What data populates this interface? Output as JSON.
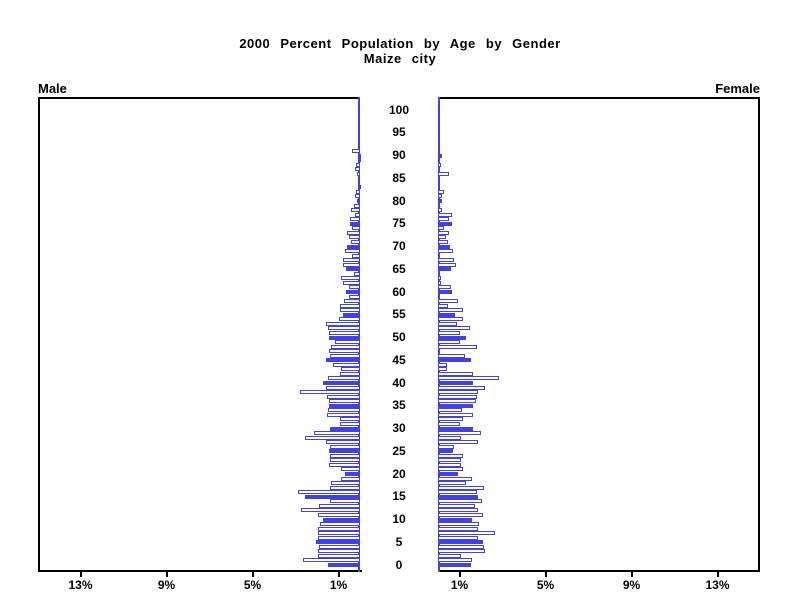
{
  "title": {
    "line1": "2000 Percent Population by Age by Gender",
    "line2": "Maize city"
  },
  "panel_labels": {
    "male": "Male",
    "female": "Female"
  },
  "axis": {
    "x_tick_values": [
      1,
      5,
      9,
      13
    ],
    "x_tick_labels_male": [
      "13%",
      "9%",
      "5%",
      "1%"
    ],
    "x_tick_labels_female": [
      "1%",
      "5%",
      "9%",
      "13%"
    ],
    "x_max_percent": 15,
    "age_tick_step": 5,
    "age_tick_labels": [
      "0",
      "5",
      "10",
      "15",
      "20",
      "25",
      "30",
      "35",
      "40",
      "45",
      "50",
      "55",
      "60",
      "65",
      "70",
      "75",
      "80",
      "85",
      "90",
      "95",
      "100"
    ]
  },
  "colors": {
    "bar_blue": "#4242e2",
    "bar_outline_fill": "#ffffff",
    "axis_black": "#000000",
    "background": "#ffffff"
  },
  "chart_data": {
    "type": "bar",
    "variant": "population-pyramid",
    "title": "2000 Percent Population by Age by Gender",
    "subtitle": "Maize city",
    "units": "percent of population",
    "xlim_each_side": [
      0,
      15
    ],
    "x_ticks_percent": [
      1,
      5,
      9,
      13
    ],
    "ages": "0-100 by single year, bars at every age; ages divisible by 5 drawn solid blue, others outlined",
    "solid_fill_every": 5,
    "age_axis_labels": [
      0,
      5,
      10,
      15,
      20,
      25,
      30,
      35,
      40,
      45,
      50,
      55,
      60,
      65,
      70,
      75,
      80,
      85,
      90,
      95,
      100
    ],
    "series": [
      {
        "name": "Male",
        "values": [
          1.5,
          2.65,
          1.95,
          1.95,
          1.9,
          2.05,
          1.95,
          1.95,
          1.95,
          1.85,
          1.7,
          1.95,
          2.75,
          1.9,
          1.4,
          2.55,
          2.9,
          1.4,
          1.35,
          0.9,
          0.7,
          0.9,
          1.45,
          1.4,
          1.4,
          1.45,
          1.4,
          1.6,
          2.55,
          2.15,
          1.4,
          0.95,
          0.95,
          1.55,
          1.5,
          1.45,
          1.45,
          1.55,
          2.8,
          1.6,
          1.7,
          1.5,
          0.95,
          0.9,
          1.25,
          1.6,
          1.4,
          1.45,
          1.35,
          1.15,
          1.45,
          1.45,
          1.5,
          1.6,
          1.0,
          0.8,
          0.95,
          0.95,
          0.75,
          0.5,
          0.65,
          0.5,
          0.8,
          0.9,
          0.3,
          0.65,
          0.8,
          0.8,
          0.35,
          0.7,
          0.6,
          0.4,
          0.5,
          0.6,
          0.35,
          0.45,
          0.45,
          0.25,
          0.4,
          0.3,
          0.15,
          0.25,
          0.2,
          0.05,
          0.1,
          0.1,
          0.15,
          0.25,
          0.2,
          0.05,
          0.05,
          0.35,
          0,
          0,
          0,
          0,
          0,
          0,
          0,
          0,
          0
        ]
      },
      {
        "name": "Female",
        "values": [
          1.55,
          1.6,
          1.05,
          2.2,
          2.15,
          2.1,
          1.85,
          2.65,
          1.85,
          1.9,
          1.6,
          2.1,
          1.85,
          1.7,
          2.05,
          1.85,
          1.8,
          2.15,
          1.3,
          1.6,
          0.95,
          1.15,
          1.05,
          1.05,
          1.15,
          0.7,
          0.75,
          1.85,
          1.05,
          2.0,
          1.65,
          1.0,
          1.15,
          1.65,
          1.1,
          1.65,
          1.75,
          1.8,
          1.85,
          2.2,
          1.65,
          2.85,
          1.65,
          0.4,
          0.4,
          1.55,
          1.25,
          0.1,
          1.8,
          1.0,
          1.3,
          1.0,
          1.5,
          0.9,
          1.15,
          0.8,
          1.15,
          0.45,
          0.95,
          0.1,
          0.65,
          0.6,
          0.15,
          0.15,
          0.1,
          0.6,
          0.85,
          0.75,
          0.1,
          0.7,
          0.55,
          0.45,
          0.35,
          0.5,
          0.3,
          0.65,
          0.5,
          0.65,
          0.2,
          0.1,
          0.2,
          0.2,
          0.3,
          0.1,
          0.05,
          0.1,
          0.5,
          0.1,
          0.15,
          0.1,
          0.2,
          0.05,
          0.1,
          0.1,
          0.05,
          0,
          0,
          0,
          0,
          0,
          0
        ]
      }
    ],
    "legend_position": "none",
    "grid": false
  }
}
